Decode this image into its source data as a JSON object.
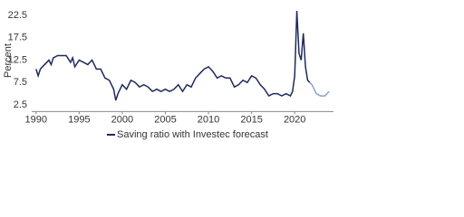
{
  "chart_data": {
    "type": "line",
    "y_label": "Percent",
    "xlim": [
      1989.5,
      2024.5
    ],
    "xticks": [
      1990,
      1995,
      2000,
      2005,
      2010,
      2015,
      2020
    ],
    "ylim": [
      1,
      25
    ],
    "yticks": [
      2.5,
      7.5,
      12.5,
      17.5,
      22.5
    ],
    "grid": false,
    "series": [
      {
        "name": "Saving ratio with Investec forecast",
        "color": "#1f2a5c",
        "x": [
          1990,
          1990.25,
          1990.5,
          1991,
          1991.5,
          1991.75,
          1992,
          1992.5,
          1993,
          1993.5,
          1994,
          1994.25,
          1994.5,
          1995,
          1995.5,
          1996,
          1996.5,
          1997,
          1997.5,
          1998,
          1998.5,
          1999,
          1999.25,
          1999.5,
          2000,
          2000.5,
          2001,
          2001.5,
          2002,
          2002.5,
          2003,
          2003.5,
          2004,
          2004.5,
          2005,
          2005.5,
          2006,
          2006.5,
          2007,
          2007.5,
          2008,
          2008.5,
          2009,
          2009.5,
          2010,
          2010.5,
          2011,
          2011.5,
          2012,
          2012.5,
          2013,
          2013.5,
          2014,
          2014.5,
          2015,
          2015.5,
          2016,
          2016.5,
          2017,
          2017.5,
          2018,
          2018.5,
          2019,
          2019.5,
          2019.75,
          2020,
          2020.25,
          2020.5,
          2020.75,
          2021,
          2021.25,
          2021.5,
          2021.75
        ],
        "values": [
          10.5,
          9,
          10.5,
          11.5,
          12.5,
          11.5,
          13,
          13.5,
          13.5,
          13.5,
          12,
          13,
          11,
          12.5,
          12,
          11.5,
          12.5,
          10.5,
          10.5,
          8.5,
          8,
          6,
          3.5,
          5,
          7,
          6,
          8,
          7.5,
          6.5,
          7,
          6.5,
          5.5,
          6,
          5.5,
          6,
          5.5,
          6,
          7,
          5.5,
          7,
          6.5,
          8.5,
          9.5,
          10.5,
          11,
          10,
          8.5,
          9,
          8.5,
          8.5,
          6.5,
          7,
          8,
          7.5,
          9,
          8.5,
          7,
          6,
          4.5,
          5,
          5,
          4.5,
          5,
          4.5,
          5.5,
          9,
          23.5,
          14,
          12.5,
          18.5,
          11,
          8,
          7.5
        ]
      },
      {
        "color": "#8ca3c8",
        "x": [
          2021.75,
          2022,
          2022.5,
          2023,
          2023.5,
          2024
        ],
        "values": [
          7.5,
          7,
          5,
          4.5,
          4.5,
          5.5
        ]
      }
    ]
  }
}
